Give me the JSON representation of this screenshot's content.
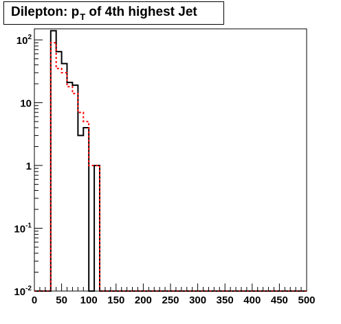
{
  "title": {
    "prefix": "Dilepton: p",
    "subscript": "T",
    "suffix": " of 4th highest Jet"
  },
  "chart_data": {
    "type": "step-histogram",
    "xlim": [
      0,
      500
    ],
    "ylim": [
      0.01,
      150
    ],
    "yscale": "log",
    "grid": false,
    "x_tick_labels": [
      "0",
      "50",
      "100",
      "150",
      "200",
      "250",
      "300",
      "350",
      "400",
      "450",
      "500"
    ],
    "x_tick_values": [
      0,
      50,
      100,
      150,
      200,
      250,
      300,
      350,
      400,
      450,
      500
    ],
    "y_tick_labels": [
      {
        "value": 0.01,
        "base": "10",
        "exp": "-2"
      },
      {
        "value": 0.1,
        "base": "10",
        "exp": "-1"
      },
      {
        "value": 1,
        "base": "1",
        "exp": ""
      },
      {
        "value": 10,
        "base": "10",
        "exp": ""
      },
      {
        "value": 100,
        "base": "10",
        "exp": "2"
      }
    ],
    "bin_edges": [
      30,
      40,
      50,
      60,
      70,
      80,
      90,
      100,
      110,
      120,
      130
    ],
    "series": [
      {
        "color": "#000000",
        "style": "solid",
        "values": [
          140,
          65,
          42,
          21,
          19,
          3,
          4,
          0.01,
          1,
          0.01
        ]
      },
      {
        "color": "#ff0000",
        "style": "dashed",
        "values": [
          90,
          35,
          30,
          18,
          14,
          7,
          5,
          1,
          1,
          0.01
        ]
      }
    ]
  }
}
